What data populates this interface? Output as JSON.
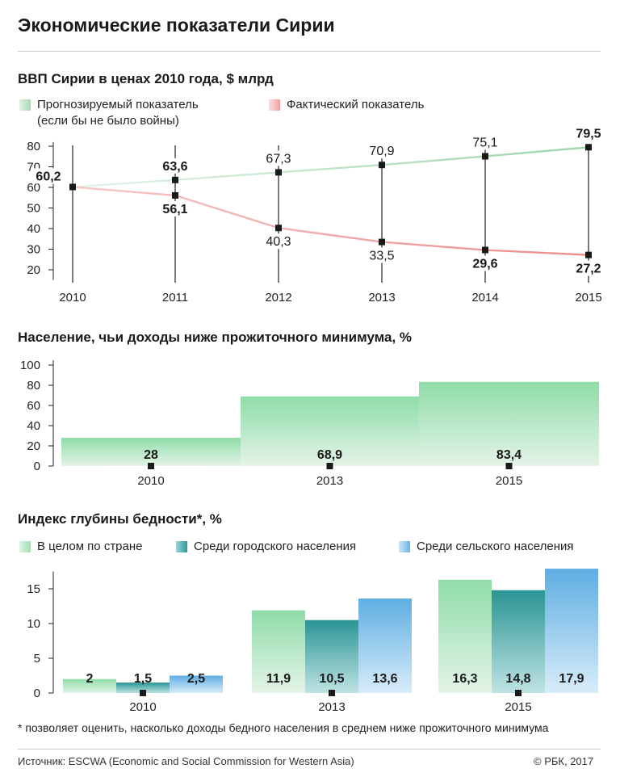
{
  "title": "Экономические показатели Сирии",
  "colors": {
    "forecast_line": "#a8d8b4",
    "actual_line": "#f0a0a0",
    "green_bar": "#9ee0b0",
    "teal_bar": "#2a9a9a",
    "blue_bar": "#6ab4e4",
    "axis": "#222222"
  },
  "chart_data": [
    {
      "type": "line",
      "title": "ВВП Сирии в ценах 2010 года, $ млрд",
      "categories": [
        "2010",
        "2011",
        "2012",
        "2013",
        "2014",
        "2015"
      ],
      "ylim": [
        15,
        82
      ],
      "yticks": [
        20,
        30,
        40,
        50,
        60,
        70,
        80
      ],
      "series": [
        {
          "name": "Прогнозируемый показатель",
          "name_line2": "(если бы не было войны)",
          "values": [
            60.2,
            63.6,
            67.3,
            70.9,
            75.1,
            79.5
          ],
          "labels": [
            "60,2",
            "63,6",
            "67,3",
            "70,9",
            "75,1",
            "79,5"
          ]
        },
        {
          "name": "Фактический показатель",
          "values": [
            60.2,
            56.1,
            40.3,
            33.5,
            29.6,
            27.2
          ],
          "labels": [
            "",
            "56,1",
            "40,3",
            "33,5",
            "29,6",
            "27,2"
          ]
        }
      ]
    },
    {
      "type": "bar",
      "title": "Население, чьи доходы ниже прожиточного минимума, %",
      "categories": [
        "2010",
        "2013",
        "2015"
      ],
      "values": [
        28,
        68.9,
        83.4
      ],
      "labels": [
        "28",
        "68,9",
        "83,4"
      ],
      "ylim": [
        0,
        100
      ],
      "yticks": [
        0,
        20,
        40,
        60,
        80,
        100
      ]
    },
    {
      "type": "bar",
      "title": "Индекс глубины бедности*, %",
      "categories": [
        "2010",
        "2013",
        "2015"
      ],
      "ylim": [
        0,
        18
      ],
      "yticks": [
        0,
        5,
        10,
        15
      ],
      "series": [
        {
          "name": "В целом по стране",
          "values": [
            2,
            11.9,
            16.3
          ],
          "labels": [
            "2",
            "11,9",
            "16,3"
          ]
        },
        {
          "name": "Среди городского населения",
          "values": [
            1.5,
            10.5,
            14.8
          ],
          "labels": [
            "1,5",
            "10,5",
            "14,8"
          ]
        },
        {
          "name": "Среди сельского населения",
          "values": [
            2.5,
            13.6,
            17.9
          ],
          "labels": [
            "2,5",
            "13,6",
            "17,9"
          ]
        }
      ]
    }
  ],
  "footnote": "* позволяет оценить, насколько доходы бедного населения в среднем ниже прожиточного минимума",
  "source": "Источник: ESCWA (Economic and Social Commission for Western Asia)",
  "copyright": "© РБК, 2017"
}
